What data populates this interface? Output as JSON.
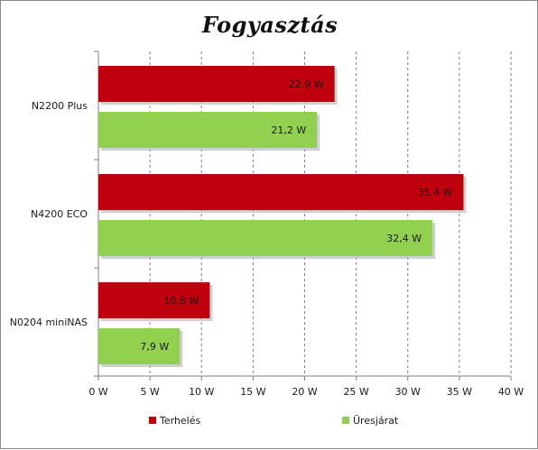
{
  "chart_data": {
    "type": "bar",
    "orientation": "horizontal",
    "title": "Fogyasztás",
    "xlabel": "",
    "ylabel": "",
    "categories": [
      "N2200 Plus",
      "N4200 ECO",
      "N0204 miniNAS"
    ],
    "series": [
      {
        "name": "Terhelés",
        "values": [
          22.9,
          35.4,
          10.8
        ],
        "labels": [
          "22,9 W",
          "35,4 W",
          "10,8 W"
        ],
        "color": "#c0000c"
      },
      {
        "name": "Üresjárat",
        "values": [
          21.2,
          32.4,
          7.9
        ],
        "labels": [
          "21,2 W",
          "32,4 W",
          "7,9 W"
        ],
        "color": "#92d050"
      }
    ],
    "xlim": [
      0,
      40
    ],
    "ticks": [
      {
        "value": 0,
        "label": "0 W"
      },
      {
        "value": 5,
        "label": "5 W"
      },
      {
        "value": 10,
        "label": "10 W"
      },
      {
        "value": 15,
        "label": "15 W"
      },
      {
        "value": 20,
        "label": "20 W"
      },
      {
        "value": 25,
        "label": "25 W"
      },
      {
        "value": 30,
        "label": "30 W"
      },
      {
        "value": 35,
        "label": "35 W"
      },
      {
        "value": 40,
        "label": "40 W"
      }
    ],
    "grid": "vertical-dashed",
    "legend": "bottom"
  }
}
